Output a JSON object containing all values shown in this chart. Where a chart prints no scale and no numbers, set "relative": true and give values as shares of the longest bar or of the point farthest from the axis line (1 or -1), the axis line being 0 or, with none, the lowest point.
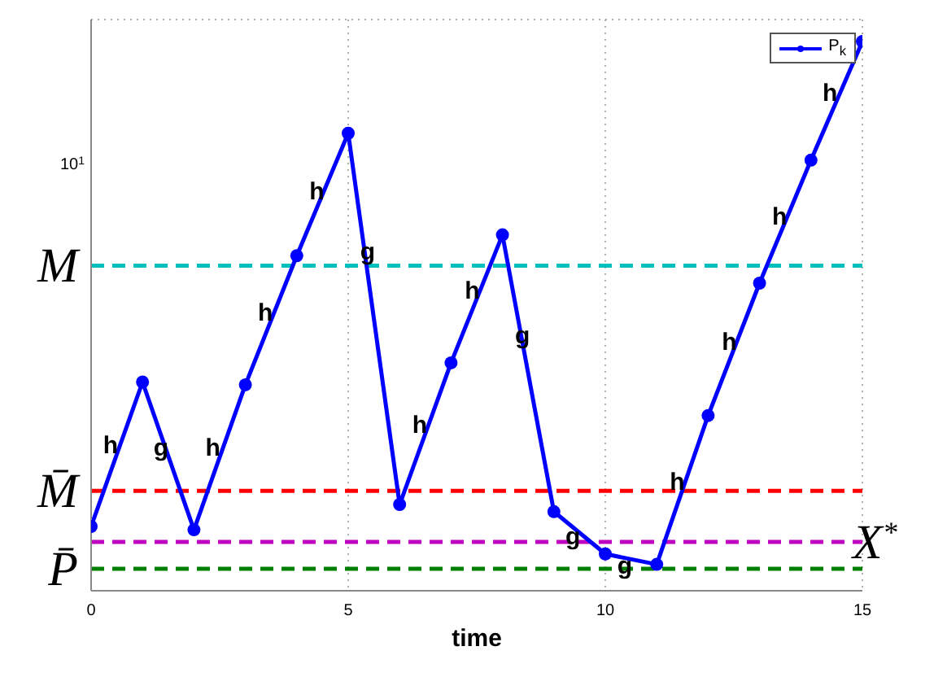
{
  "chart_data": {
    "type": "line",
    "xlabel": "time",
    "relative": true,
    "x": [
      0,
      1,
      2,
      3,
      4,
      5,
      6,
      7,
      8,
      9,
      10,
      11,
      12,
      13,
      14,
      15
    ],
    "series": [
      {
        "name": "P$_{k}$",
        "color": "#0000ff",
        "values": [
          0.117,
          0.38,
          0.111,
          0.375,
          0.61,
          0.833,
          0.157,
          0.415,
          0.648,
          0.144,
          0.067,
          0.048,
          0.319,
          0.56,
          0.784,
          1
        ]
      }
    ],
    "xlim": [
      0,
      15
    ],
    "xticks": [
      0,
      5,
      10,
      15
    ],
    "ref_lines": [
      {
        "axis": "y",
        "value": 0.592,
        "label": "M",
        "color": "#00bfbf",
        "line_style": "dashed"
      },
      {
        "axis": "y",
        "value": 0.182,
        "label": "M̄",
        "color": "#ff0000",
        "line_style": "dashed"
      },
      {
        "axis": "y",
        "value": 0.089,
        "label": "X$^{*}$",
        "color": "#bf00bf",
        "line_style": "dashed"
      },
      {
        "axis": "y",
        "value": 0.04,
        "label": "P̄",
        "color": "#008000",
        "line_style": "dashed"
      }
    ],
    "annotations": [
      "10$^{1}$",
      {
        "text": "h",
        "x": 0.38,
        "y": 0.266
      },
      {
        "text": "g",
        "x": 1.36,
        "y": 0.261
      },
      {
        "text": "h",
        "x": 2.37,
        "y": 0.261
      },
      {
        "text": "h",
        "x": 3.39,
        "y": 0.508
      },
      {
        "text": "h",
        "x": 4.39,
        "y": 0.729
      },
      {
        "text": "g",
        "x": 5.38,
        "y": 0.619
      },
      {
        "text": "h",
        "x": 6.39,
        "y": 0.303
      },
      {
        "text": "h",
        "x": 7.41,
        "y": 0.547
      },
      {
        "text": "g",
        "x": 8.39,
        "y": 0.466
      },
      {
        "text": "g",
        "x": 9.37,
        "y": 0.1
      },
      {
        "text": "g",
        "x": 10.38,
        "y": 0.047
      },
      {
        "text": "h",
        "x": 11.4,
        "y": 0.2
      },
      {
        "text": "h",
        "x": 12.41,
        "y": 0.455
      },
      {
        "text": "h",
        "x": 13.39,
        "y": 0.683
      },
      {
        "text": "h",
        "x": 14.37,
        "y": 0.908
      }
    ],
    "grid": true,
    "legend": "top right",
    "marker": "circle",
    "line_style": "solid"
  }
}
